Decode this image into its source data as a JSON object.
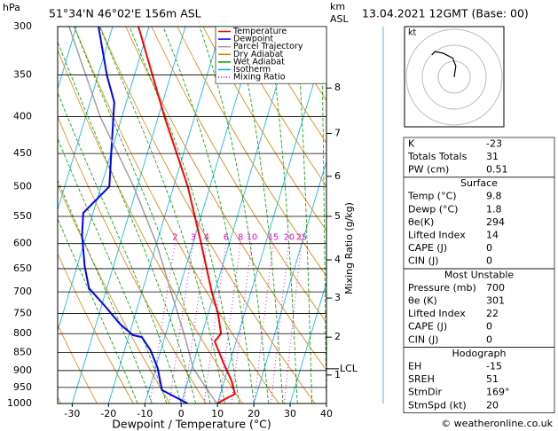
{
  "header": {
    "pressure_unit": "hPa",
    "location": "51°34'N 46°02'E 156m ASL",
    "height_unit": "km",
    "height_ref": "ASL",
    "time": "13.04.2021 12GMT (Base: 00)"
  },
  "chart_data": {
    "type": "skew-t",
    "x_label": "Dewpoint / Temperature (°C)",
    "y2_label": "Mixing Ratio (g/kg)",
    "ylim": [
      1000,
      300
    ],
    "log_y": true,
    "yticks": [
      1000,
      950,
      900,
      850,
      800,
      750,
      700,
      650,
      600,
      550,
      500,
      450,
      400,
      350,
      300
    ],
    "xlim": [
      -34,
      40
    ],
    "xticks": [
      -30,
      -20,
      -10,
      0,
      10,
      20,
      30,
      40
    ],
    "series": [
      {
        "name": "Temperature",
        "color": "#ff0000",
        "x": [
          9.8,
          14,
          12,
          8.4,
          4.1,
          5.2,
          2.7,
          -0.8,
          -7.7,
          -16.1,
          -28.3,
          -42.9
        ],
        "values": [
          1000,
          970,
          930,
          880,
          820,
          800,
          750,
          700,
          600,
          500,
          400,
          300
        ]
      },
      {
        "name": "Dewpoint",
        "color": "#0000ff",
        "x": [
          1.8,
          -6.4,
          -9.4,
          -12.8,
          -16.3,
          -18.9,
          -23.5,
          -29.1,
          -34.9,
          -37.9,
          -41.2,
          -42.7,
          -37.7,
          -40.1,
          -43.3,
          -47.5,
          -53.9
        ],
        "values": [
          1000,
          958,
          893,
          844,
          809,
          804,
          775,
          732,
          692,
          645,
          584,
          544,
          500,
          446,
          382,
          351,
          300
        ]
      },
      {
        "name": "Parcel Trajectory",
        "color": "#a0a0a0",
        "x": [
          9.8,
          0.5,
          -5,
          -12,
          -20,
          -31,
          -46,
          -62
        ],
        "values": [
          1000,
          895,
          800,
          700,
          600,
          500,
          400,
          300
        ]
      }
    ],
    "reference_lines": [
      {
        "name": "Dry Adiabat",
        "color": "#e08000"
      },
      {
        "name": "Wet Adiabat",
        "color": "#00a000"
      },
      {
        "name": "Isotherm",
        "color": "#00b0f0"
      },
      {
        "name": "Mixing Ratio",
        "color": "#e000e0"
      }
    ],
    "mixing_ratio_labels": [
      2,
      3,
      4,
      6,
      8,
      10,
      15,
      20,
      25
    ],
    "height_ticks": [
      {
        "value": 8,
        "pressure": 365
      },
      {
        "value": 7,
        "pressure": 422
      },
      {
        "value": 6,
        "pressure": 484
      },
      {
        "value": 5,
        "pressure": 550
      },
      {
        "value": 4,
        "pressure": 632
      },
      {
        "value": 3,
        "pressure": 714
      },
      {
        "value": 2,
        "pressure": 809
      },
      {
        "value": 1,
        "pressure": 913
      }
    ],
    "lcl": {
      "label": "LCL",
      "pressure": 895
    }
  },
  "hodograph": {
    "unit": "kt",
    "u": [
      0,
      1,
      -1,
      -7,
      -12,
      -14
    ],
    "v": [
      0,
      7,
      12,
      15,
      16,
      14
    ]
  },
  "table": {
    "sections": [
      {
        "rows": [
          [
            "K",
            "-23"
          ],
          [
            "Totals Totals",
            "31"
          ],
          [
            "PW (cm)",
            "0.51"
          ]
        ]
      },
      {
        "title": "Surface",
        "rows": [
          [
            "Temp (°C)",
            "9.8"
          ],
          [
            "Dewp (°C)",
            "1.8"
          ],
          [
            "θe(K)",
            "294"
          ],
          [
            "Lifted Index",
            "14"
          ],
          [
            "CAPE (J)",
            "0"
          ],
          [
            "CIN (J)",
            "0"
          ]
        ]
      },
      {
        "title": "Most Unstable",
        "rows": [
          [
            "Pressure (mb)",
            "700"
          ],
          [
            "θe (K)",
            "301"
          ],
          [
            "Lifted Index",
            "22"
          ],
          [
            "CAPE (J)",
            "0"
          ],
          [
            "CIN (J)",
            "0"
          ]
        ]
      },
      {
        "title": "Hodograph",
        "rows": [
          [
            "EH",
            "-15"
          ],
          [
            "SREH",
            "51"
          ],
          [
            "StmDir",
            "169°"
          ],
          [
            "StmSpd (kt)",
            "20"
          ]
        ]
      }
    ]
  },
  "footer": "© weatheronline.co.uk"
}
